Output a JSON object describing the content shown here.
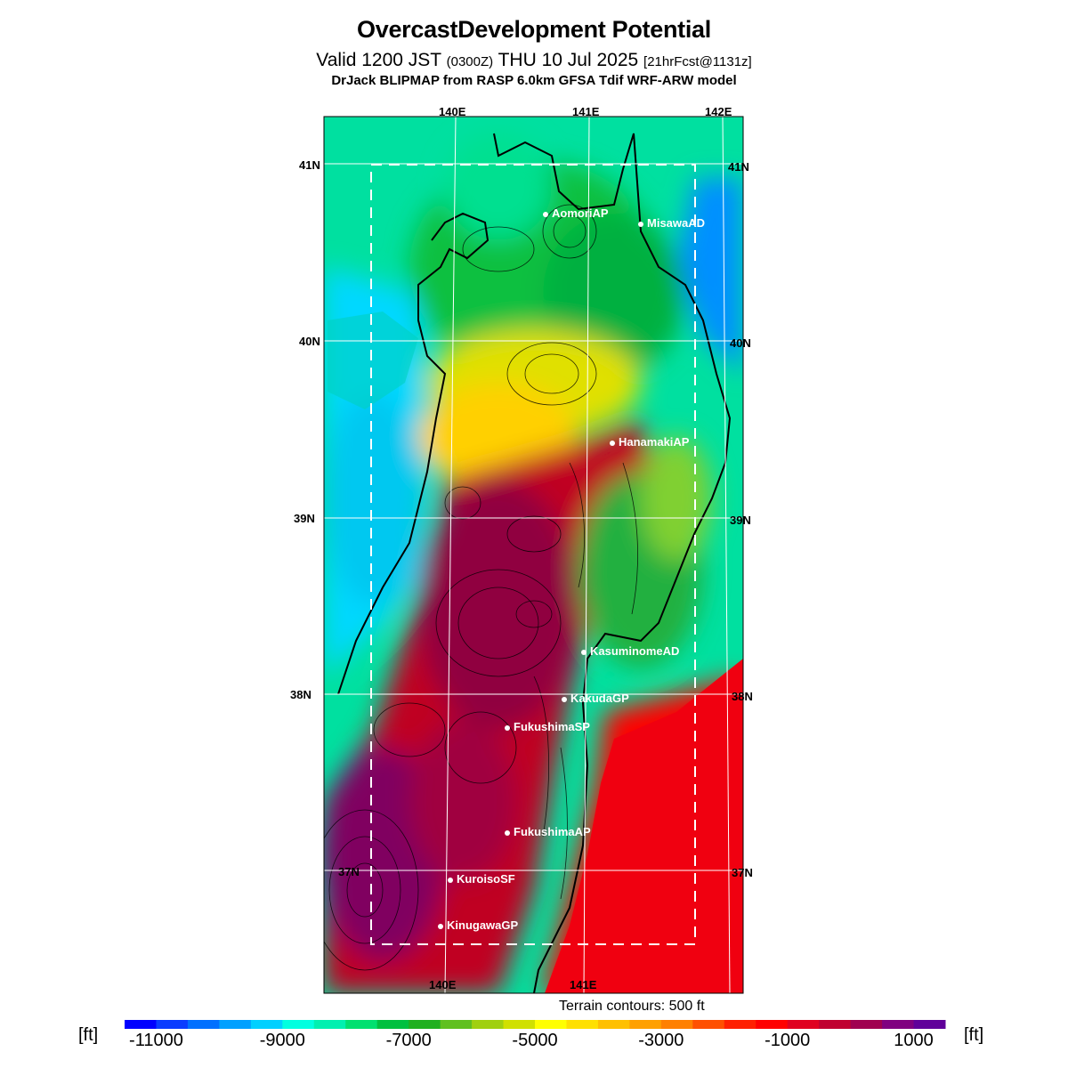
{
  "header": {
    "title": "OvercastDevelopment Potential",
    "valid_prefix": "Valid 1200 JST",
    "utc": "(0300Z)",
    "date": "THU 10 Jul 2025",
    "forecast": "[21hrFcst@1131z]",
    "model": "DrJack BLIPMAP from RASP 6.0km GFSA Tdif WRF-ARW model"
  },
  "map": {
    "lon_labels_top": [
      "140E",
      "141E",
      "142E"
    ],
    "lon_labels_bottom": [
      "140E",
      "141E"
    ],
    "lat_labels_left": [
      "41N",
      "40N",
      "39N",
      "38N",
      "37N"
    ],
    "lat_labels_right": [
      "41N",
      "40N",
      "39N",
      "38N",
      "37N"
    ],
    "locations": [
      "AomoriAP",
      "MisawaAD",
      "HanamakiAP",
      "KasuminomeAD",
      "KakudaGP",
      "FukushimaSP",
      "FukushimaAP",
      "KuroisoSF",
      "KinugawaGP"
    ],
    "terrain_note": "Terrain contours: 500 ft"
  },
  "colorbar": {
    "unit": "[ft]",
    "tick_labels": [
      "-11000",
      "-9000",
      "-7000",
      "-5000",
      "-3000",
      "-1000",
      "1000"
    ],
    "colors": [
      "#0000ff",
      "#0a3cff",
      "#0070ff",
      "#00a0ff",
      "#00d0ff",
      "#00ffe0",
      "#00f0b0",
      "#00e070",
      "#00c040",
      "#20b020",
      "#60c020",
      "#a0d010",
      "#d0e000",
      "#ffff00",
      "#ffe000",
      "#ffc000",
      "#ffa000",
      "#ff8000",
      "#ff5000",
      "#ff2000",
      "#ff0000",
      "#e00020",
      "#c00030",
      "#a00050",
      "#800080",
      "#60009a"
    ]
  }
}
